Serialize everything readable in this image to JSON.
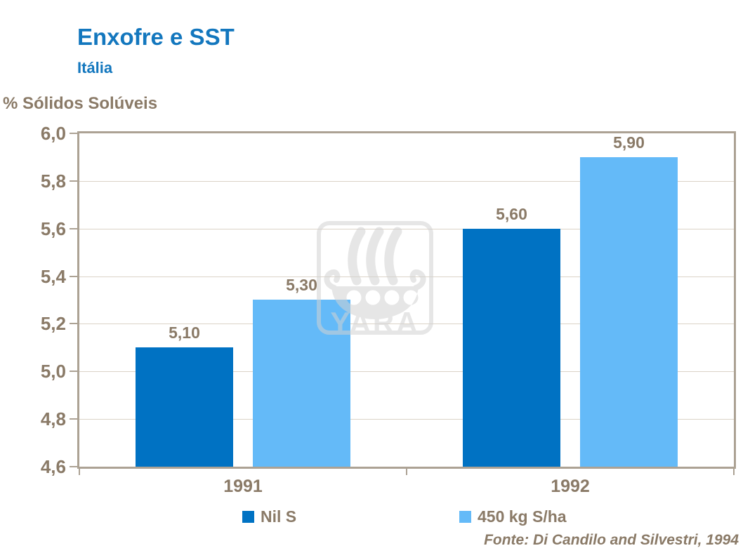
{
  "header": {
    "title": "Enxofre e SST",
    "subtitle": "Itália"
  },
  "chart_data": {
    "type": "bar",
    "title": "Enxofre e SST",
    "subtitle": "Itália",
    "ylabel": "% Sólidos Solúveis",
    "xlabel": "",
    "ylim": [
      4.6,
      6.0
    ],
    "ytick_step": 0.2,
    "ytick_labels": [
      "4,6",
      "4,8",
      "5,0",
      "5,2",
      "5,4",
      "5,6",
      "5,8",
      "6,0"
    ],
    "categories": [
      "1991",
      "1992"
    ],
    "series": [
      {
        "name": "Nil S",
        "color": "#0072C3",
        "values": [
          5.1,
          5.6
        ],
        "value_labels": [
          "5,10",
          "5,60"
        ]
      },
      {
        "name": "450 kg S/ha",
        "color": "#64BAF8",
        "values": [
          5.3,
          5.9
        ],
        "value_labels": [
          "5,30",
          "5,90"
        ]
      }
    ],
    "grid": true,
    "legend_position": "bottom"
  },
  "source": {
    "text": "Fonte: Di Candilo and Silvestri, 1994"
  },
  "watermark": {
    "name": "yara-logo",
    "text": "YARA"
  },
  "colors": {
    "title_blue": "#1377BE",
    "text_brown": "#8A7A67",
    "axis_border": "#ACA294",
    "gridline": "#DBD3C7",
    "bar_dark_blue": "#0072C3",
    "bar_light_blue": "#64BAF8",
    "watermark_gray": "#D2D2D2",
    "background": "#FFFFFF"
  }
}
